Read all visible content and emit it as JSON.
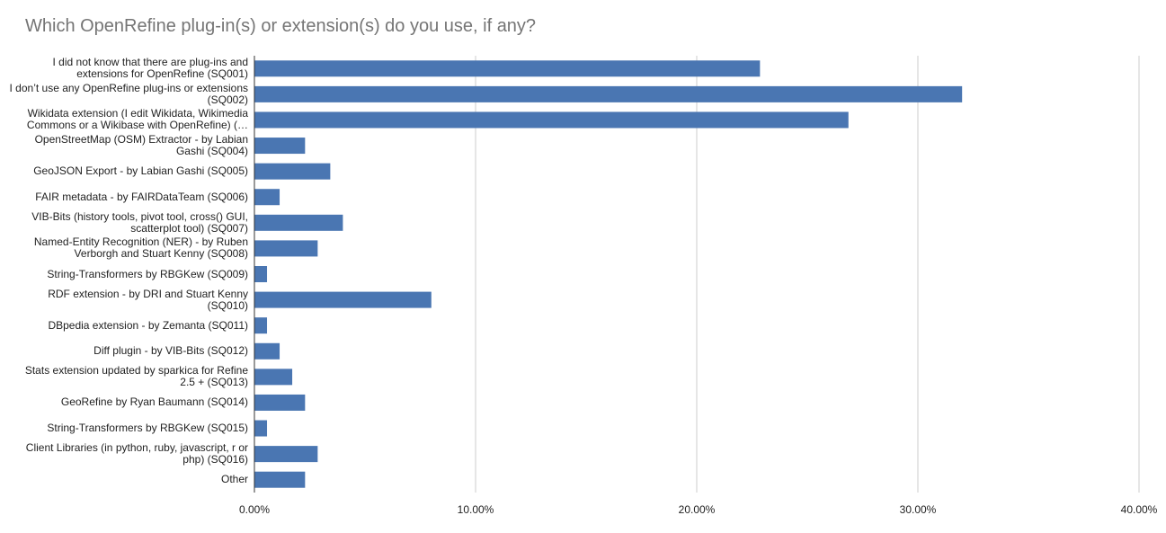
{
  "chart_data": {
    "type": "bar",
    "orientation": "horizontal",
    "title": "Which OpenRefine plug-in(s) or extension(s) do you use, if any?",
    "xlabel": "",
    "ylabel": "",
    "xlim": [
      0,
      40
    ],
    "x_ticks": [
      "0.00%",
      "10.00%",
      "20.00%",
      "30.00%",
      "40.00%"
    ],
    "grid": "vertical",
    "bar_color": "#4a76b2",
    "categories": [
      "I did not know that there are plug-ins and extensions for OpenRefine (SQ001)",
      "I don’t use any OpenRefine plug-ins or extensions (SQ002)",
      "Wikidata extension (I edit Wikidata, Wikimedia Commons or a Wikibase with OpenRefine) (…",
      "OpenStreetMap (OSM) Extractor - by Labian Gashi (SQ004)",
      "GeoJSON Export - by Labian Gashi (SQ005)",
      "FAIR metadata - by FAIRDataTeam (SQ006)",
      "VIB-Bits (history tools, pivot tool, cross() GUI, scatterplot tool) (SQ007)",
      "Named-Entity Recognition (NER) - by Ruben Verborgh and Stuart Kenny (SQ008)",
      "String-Transformers by RBGKew (SQ009)",
      "RDF extension - by DRI and Stuart Kenny (SQ010)",
      "DBpedia extension - by Zemanta (SQ011)",
      "Diff plugin - by VIB-Bits (SQ012)",
      "Stats extension updated by sparkica for Refine 2.5 + (SQ013)",
      "GeoRefine by Ryan Baumann (SQ014)",
      "String-Transformers by RBGKew (SQ015)",
      "Client Libraries (in python, ruby, javascript, r or php) (SQ016)",
      "Other"
    ],
    "values": [
      22.86,
      32.0,
      26.86,
      2.29,
      3.43,
      1.14,
      4.0,
      2.86,
      0.57,
      8.0,
      0.57,
      1.14,
      1.71,
      2.29,
      0.57,
      2.86,
      2.29
    ]
  }
}
